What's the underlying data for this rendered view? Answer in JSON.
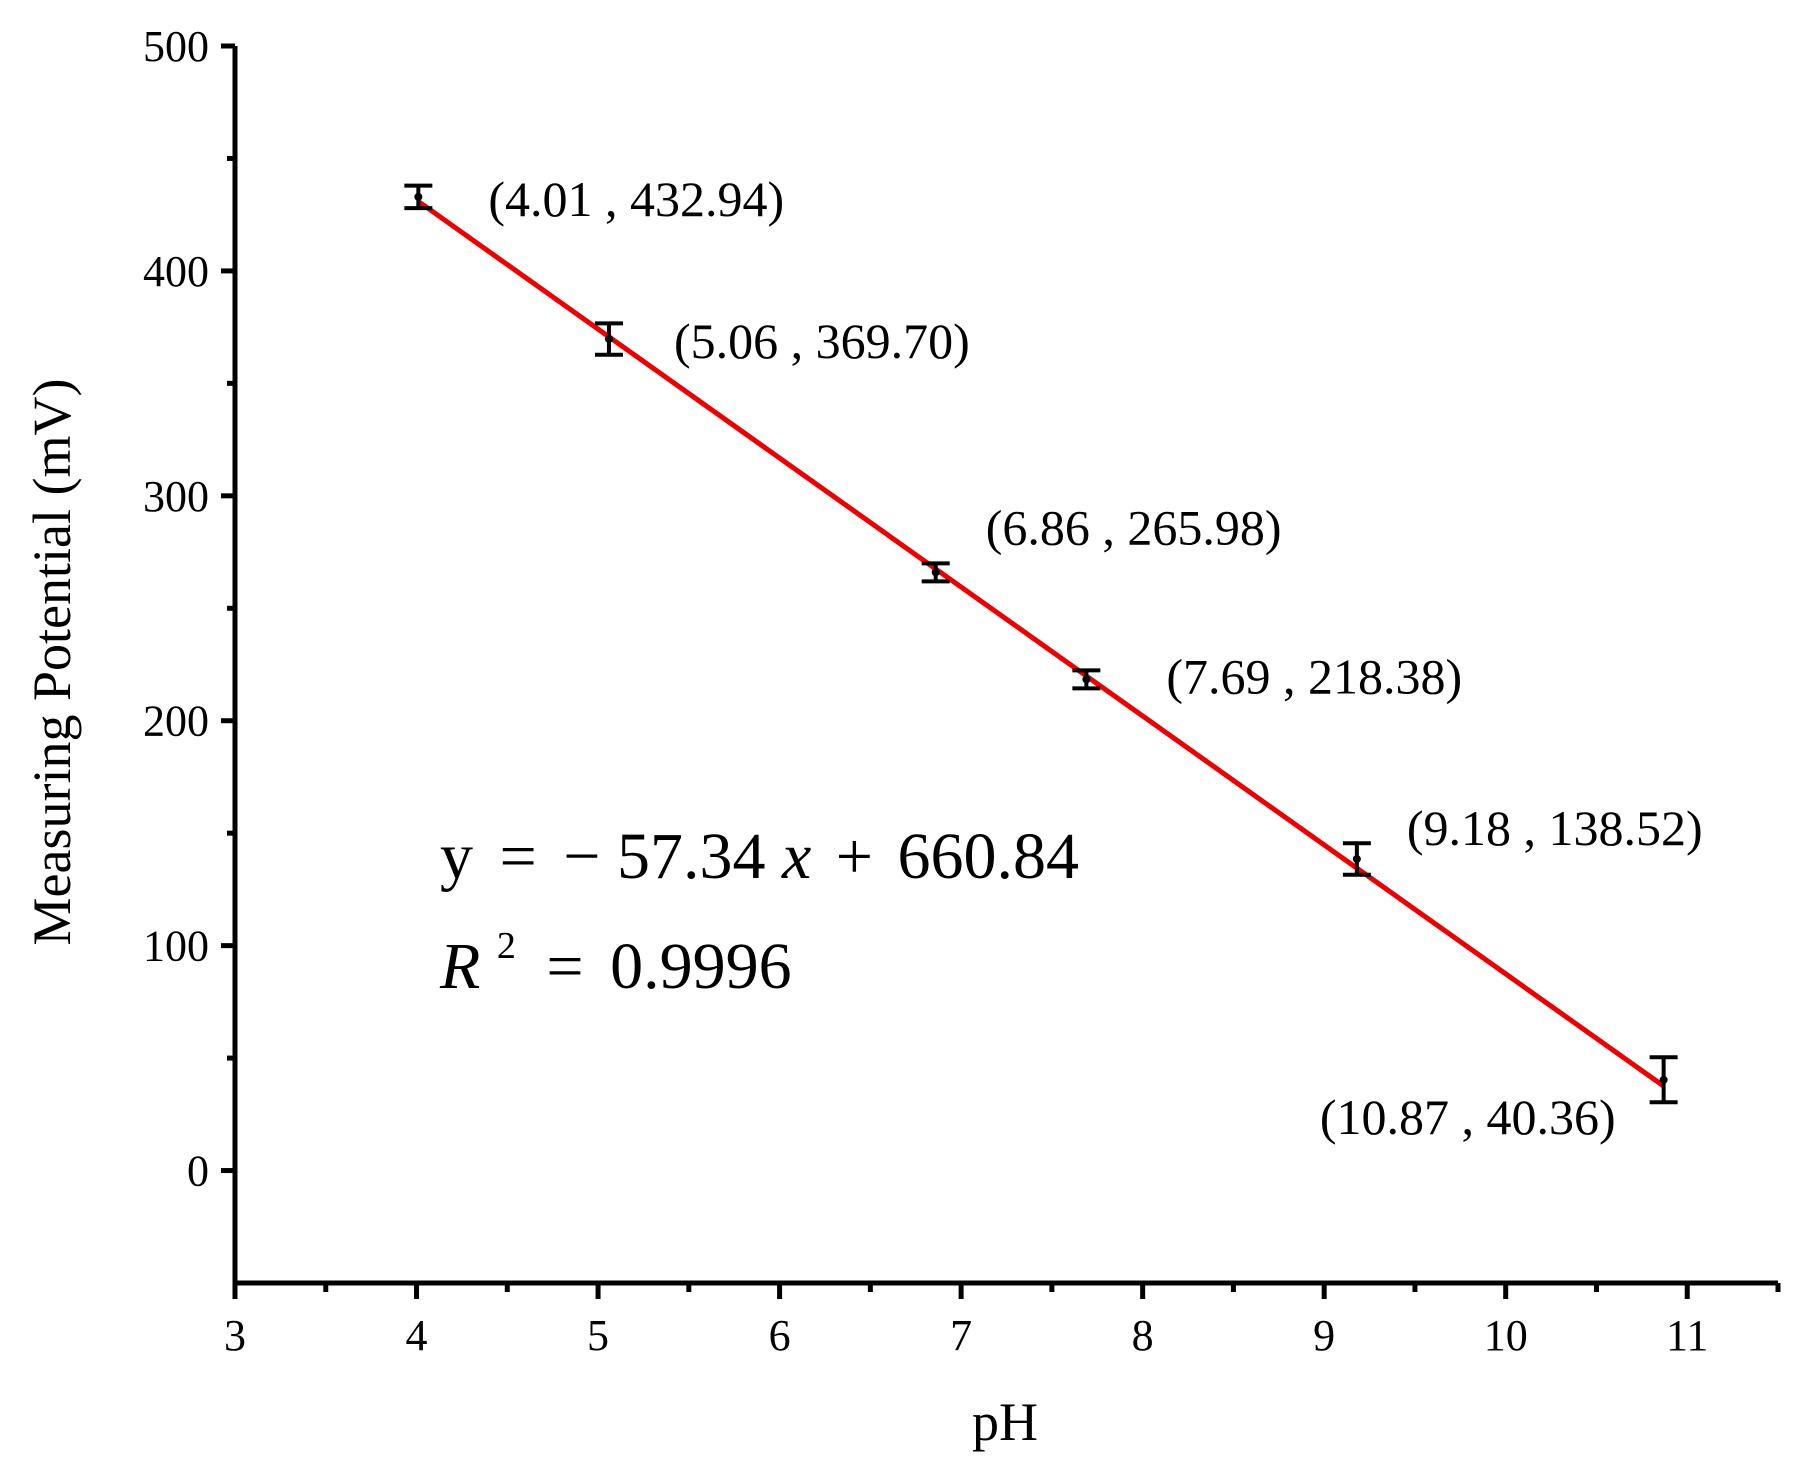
{
  "chart_data": {
    "type": "scatter",
    "xlabel": "pH",
    "ylabel": "Measuring Potential (mV)",
    "xlim": [
      3,
      11.5
    ],
    "ylim": [
      -50,
      500
    ],
    "xticks": [
      "3",
      "4",
      "5",
      "6",
      "7",
      "8",
      "9",
      "10",
      "11"
    ],
    "yticks": [
      "0",
      "100",
      "200",
      "300",
      "400",
      "500"
    ],
    "grid": false,
    "points": [
      {
        "x": 4.01,
        "y": 432.94,
        "err": 5,
        "label": "(4.01 , 432.94)"
      },
      {
        "x": 5.06,
        "y": 369.7,
        "err": 7,
        "label": "(5.06 , 369.70)"
      },
      {
        "x": 6.86,
        "y": 265.98,
        "err": 4,
        "label": "(6.86 , 265.98)"
      },
      {
        "x": 7.69,
        "y": 218.38,
        "err": 4,
        "label": "(7.69 , 218.38)"
      },
      {
        "x": 9.18,
        "y": 138.52,
        "err": 7,
        "label": "(9.18 , 138.52)"
      },
      {
        "x": 10.87,
        "y": 40.36,
        "err": 10,
        "label": "(10.87 , 40.36)"
      }
    ],
    "fit": {
      "slope": -57.34,
      "intercept": 660.84,
      "x_range": [
        4.01,
        10.87
      ],
      "color": "#ee0000",
      "equation_text": {
        "y": "y",
        "eq": "=",
        "minus": "−",
        "slope": "57.34",
        "x": "x",
        "plus": "+",
        "intercept": "660.84"
      },
      "r2_text": {
        "r": "R",
        "sup": "2",
        "eq": "=",
        "value": "0.9996"
      }
    }
  }
}
